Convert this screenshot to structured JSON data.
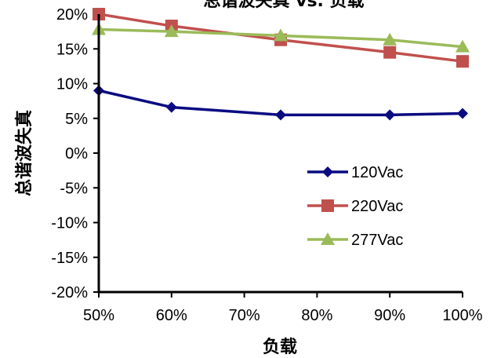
{
  "chart_data": {
    "type": "line",
    "title": "总谐波失真 vs. 负载",
    "xlabel": "负载",
    "ylabel": "总谐波失真",
    "categories": [
      "50%",
      "60%",
      "70%",
      "80%",
      "90%",
      "100%"
    ],
    "x": [
      50,
      60,
      75,
      90,
      100
    ],
    "xlim": [
      50,
      100
    ],
    "ylim": [
      -20,
      20
    ],
    "yticks": [
      "-20%",
      "-15%",
      "-10%",
      "-5%",
      "0%",
      "5%",
      "10%",
      "15%",
      "20%"
    ],
    "grid": false,
    "legend_position": "lower-right",
    "series": [
      {
        "name": "120Vac",
        "color": "#0a0a82",
        "marker": "diamond",
        "values": [
          9.0,
          6.6,
          5.5,
          5.5,
          5.7
        ]
      },
      {
        "name": "220Vac",
        "color": "#c0504d",
        "marker": "square",
        "values": [
          20.0,
          18.3,
          16.3,
          14.5,
          13.2
        ]
      },
      {
        "name": "277Vac",
        "color": "#9bbb59",
        "marker": "triangle",
        "values": [
          17.8,
          17.5,
          16.9,
          16.3,
          15.3
        ]
      }
    ]
  }
}
